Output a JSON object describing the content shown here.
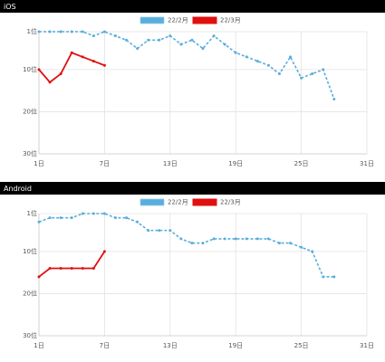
{
  "chart_data": [
    {
      "type": "line",
      "title": "iOS",
      "xlim": [
        1,
        31
      ],
      "xticks": [
        {
          "value": 1,
          "label": "1日"
        },
        {
          "value": 7,
          "label": "7日"
        },
        {
          "value": 13,
          "label": "13日"
        },
        {
          "value": 19,
          "label": "19日"
        },
        {
          "value": 25,
          "label": "25日"
        },
        {
          "value": 31,
          "label": "31日"
        }
      ],
      "ylim": [
        1,
        30
      ],
      "yticks": [
        {
          "value": 1,
          "label": "1位"
        },
        {
          "value": 10,
          "label": "10位"
        },
        {
          "value": 20,
          "label": "20位"
        },
        {
          "value": 30,
          "label": "30位"
        }
      ],
      "y_inverted": true,
      "grid": true,
      "series": [
        {
          "name": "22/2月",
          "color": "#5aaedc",
          "dashed": true,
          "x": [
            1,
            2,
            3,
            4,
            5,
            6,
            7,
            8,
            9,
            10,
            11,
            12,
            13,
            14,
            15,
            16,
            17,
            18,
            19,
            20,
            21,
            22,
            23,
            24,
            25,
            26,
            27,
            28
          ],
          "values": [
            1,
            1,
            1,
            1,
            1,
            2,
            1,
            2,
            3,
            5,
            3,
            3,
            2,
            4,
            3,
            5,
            2,
            4,
            6,
            7,
            8,
            9,
            11,
            7,
            12,
            11,
            10,
            17
          ]
        },
        {
          "name": "22/3月",
          "color": "#e01010",
          "dashed": false,
          "x": [
            1,
            2,
            3,
            4,
            5,
            6,
            7
          ],
          "values": [
            10,
            13,
            11,
            6,
            7,
            8,
            9
          ]
        }
      ]
    },
    {
      "type": "line",
      "title": "Android",
      "xlim": [
        1,
        31
      ],
      "xticks": [
        {
          "value": 1,
          "label": "1日"
        },
        {
          "value": 7,
          "label": "7日"
        },
        {
          "value": 13,
          "label": "13日"
        },
        {
          "value": 19,
          "label": "19日"
        },
        {
          "value": 25,
          "label": "25日"
        },
        {
          "value": 31,
          "label": "31日"
        }
      ],
      "ylim": [
        1,
        30
      ],
      "yticks": [
        {
          "value": 1,
          "label": "1位"
        },
        {
          "value": 10,
          "label": "10位"
        },
        {
          "value": 20,
          "label": "20位"
        },
        {
          "value": 30,
          "label": "30位"
        }
      ],
      "y_inverted": true,
      "grid": true,
      "series": [
        {
          "name": "22/2月",
          "color": "#5aaedc",
          "dashed": true,
          "x": [
            1,
            2,
            3,
            4,
            5,
            6,
            7,
            8,
            9,
            10,
            11,
            12,
            13,
            14,
            15,
            16,
            17,
            18,
            19,
            20,
            21,
            22,
            23,
            24,
            25,
            26,
            27,
            28
          ],
          "values": [
            3,
            2,
            2,
            2,
            1,
            1,
            1,
            2,
            2,
            3,
            5,
            5,
            5,
            7,
            8,
            8,
            7,
            7,
            7,
            7,
            7,
            7,
            8,
            8,
            9,
            10,
            16,
            16
          ]
        },
        {
          "name": "22/3月",
          "color": "#e01010",
          "dashed": false,
          "x": [
            1,
            2,
            3,
            4,
            5,
            6,
            7
          ],
          "values": [
            16,
            14,
            14,
            14,
            14,
            14,
            10
          ]
        }
      ]
    }
  ]
}
